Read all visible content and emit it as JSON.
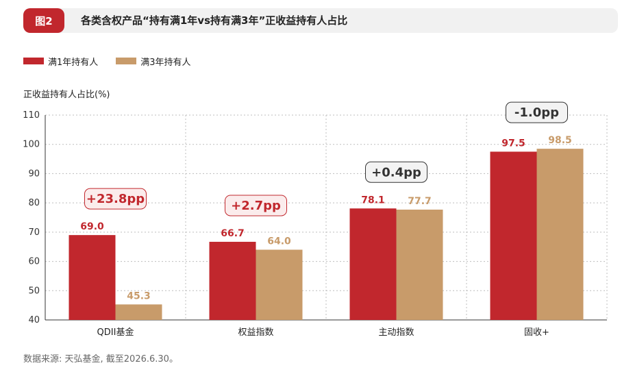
{
  "figure": {
    "badge": "图2",
    "title": "各类含权产品“持有满1年vs持有满3年”正收益持有人占比"
  },
  "source_note": "数据来源: 天弘基金, 截至2026.6.30。",
  "colors": {
    "series1": "#c1272d",
    "series2": "#c89b6a",
    "grid": "#bdbdbd",
    "axis": "#333333",
    "diff_positive": "#c1272d",
    "diff_neutral": "#333333"
  },
  "chart_data": {
    "type": "bar",
    "title": "各类含权产品“持有满1年vs持有满3年”正收益持有人占比",
    "ylabel": "正收益持有人占比(%)",
    "xlabel": "",
    "ylim": [
      40,
      110
    ],
    "yticks": [
      40,
      50,
      60,
      70,
      80,
      90,
      100,
      110
    ],
    "grid": true,
    "legend": "top-left",
    "categories": [
      "QDII基金",
      "权益指数",
      "主动指数",
      "固收+"
    ],
    "series": [
      {
        "name": "满1年持有人",
        "values": [
          69.0,
          66.7,
          78.1,
          97.5
        ],
        "labels": [
          "69.0",
          "66.7",
          "78.1",
          "97.5"
        ]
      },
      {
        "name": "满3年持有人",
        "values": [
          45.3,
          64.0,
          77.7,
          98.5
        ],
        "labels": [
          "45.3",
          "64.0",
          "77.7",
          "98.5"
        ]
      }
    ],
    "annotations": [
      "+23.8pp",
      "+2.7pp",
      "+0.4pp",
      "-1.0pp"
    ],
    "annotation_tone": [
      "positive",
      "positive",
      "neutral",
      "neutral"
    ]
  }
}
